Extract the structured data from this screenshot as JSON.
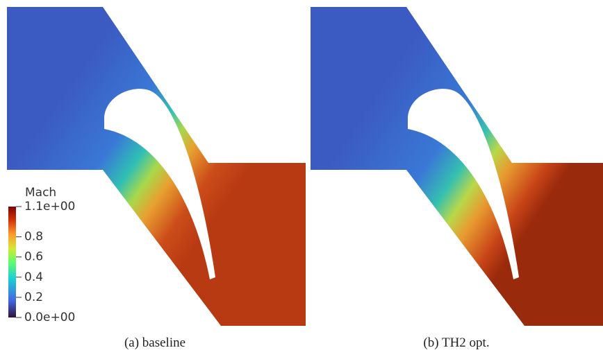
{
  "panels": [
    {
      "caption": "(a) baseline"
    },
    {
      "caption": "(b) TH2 opt."
    }
  ],
  "colorbar": {
    "title": "Mach",
    "range": [
      0,
      1.1
    ],
    "ticks": [
      {
        "value": 1.1,
        "label": "1.1e+00"
      },
      0.8,
      0.6,
      0.4,
      0.2,
      {
        "value": 0,
        "label": "0.0e+00"
      }
    ]
  }
}
